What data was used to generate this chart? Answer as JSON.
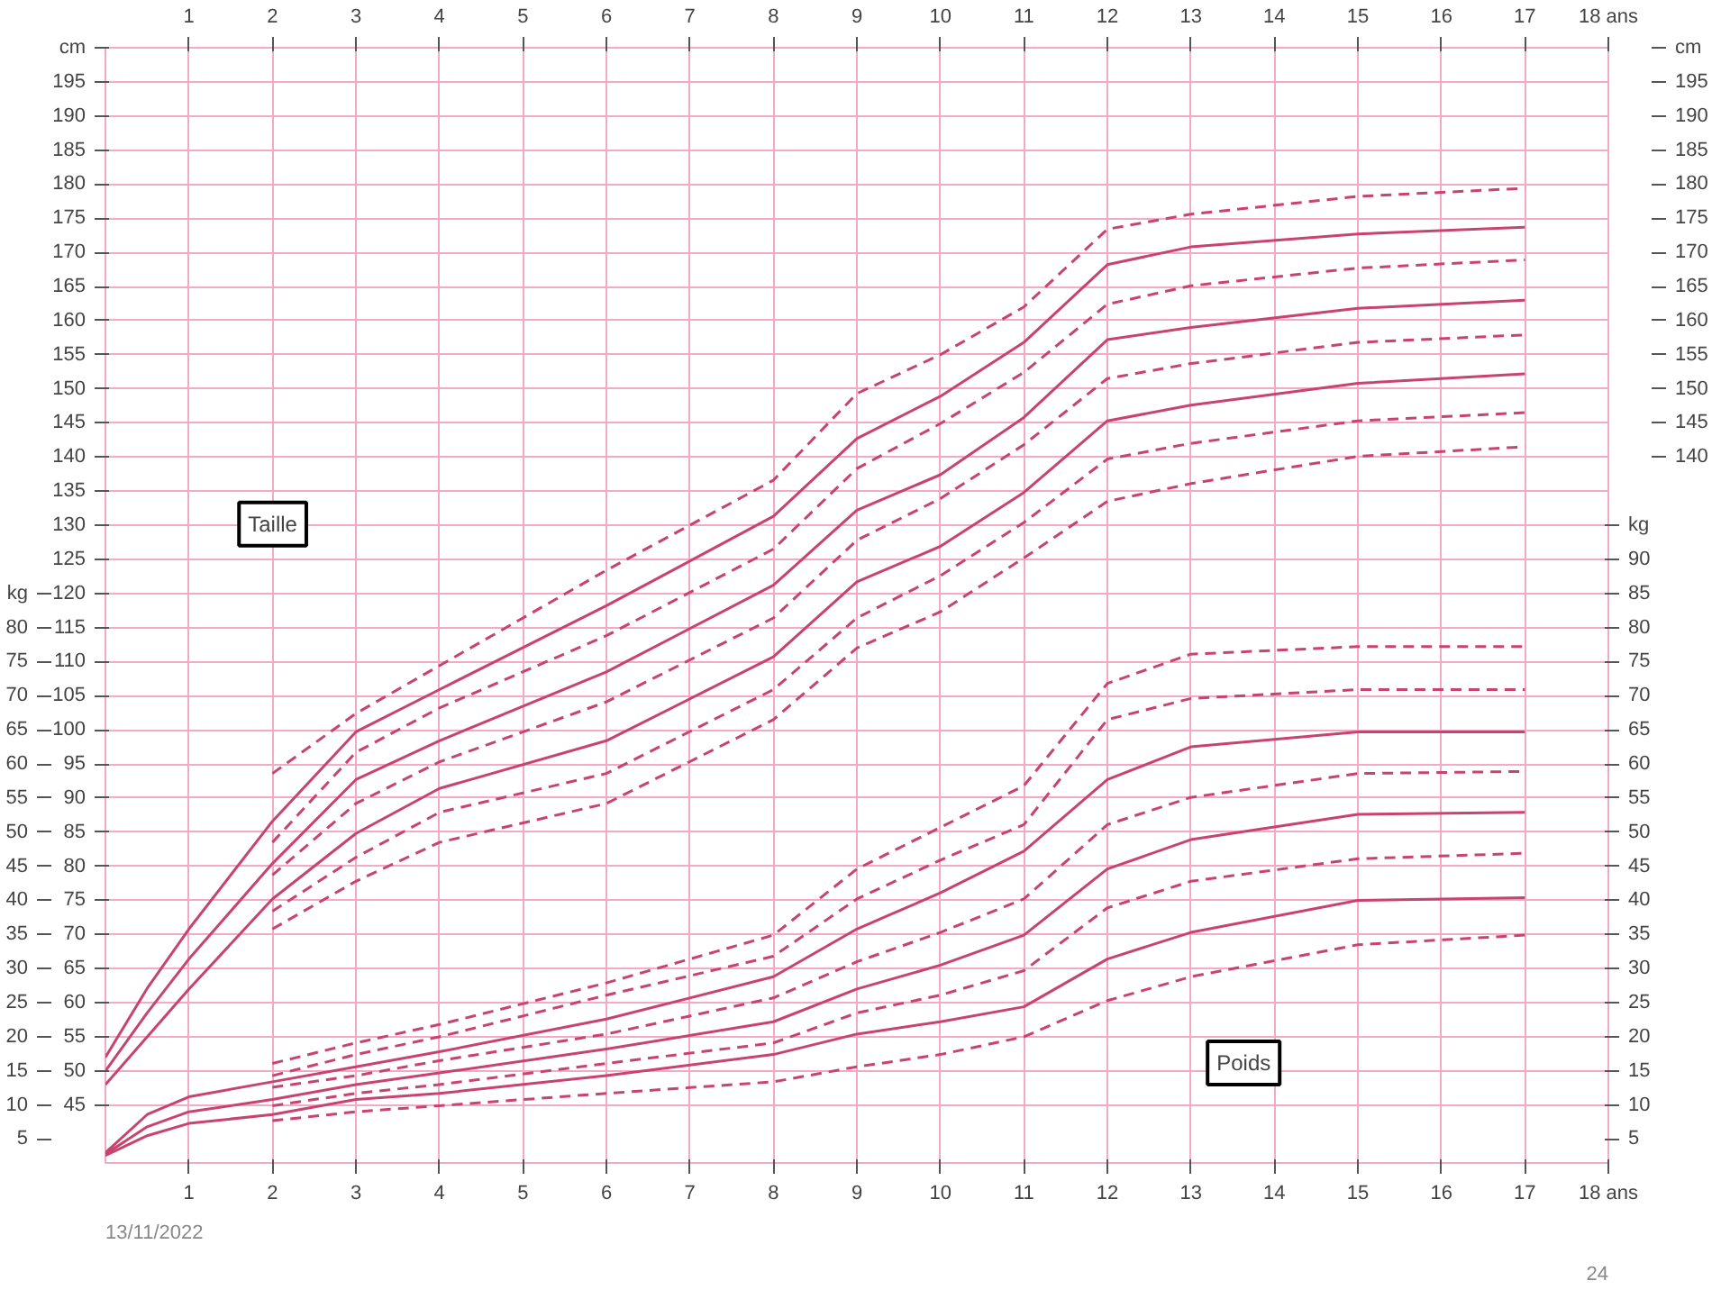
{
  "chart_data": {
    "type": "line",
    "xlim": [
      0,
      18
    ],
    "xticks": [
      1,
      2,
      3,
      4,
      5,
      6,
      7,
      8,
      9,
      10,
      11,
      12,
      13,
      14,
      15,
      16,
      17,
      {
        "value": 18,
        "label": "18 ans"
      }
    ],
    "x2lim": [
      0,
      18
    ],
    "x2ticks": [
      1,
      2,
      3,
      4,
      5,
      6,
      7,
      8,
      9,
      10,
      11,
      12,
      13,
      14,
      15,
      16,
      17,
      {
        "value": 18,
        "label": "18 ans"
      }
    ],
    "ylim": [
      36.5,
      200
    ],
    "yticks": [
      45,
      50,
      55,
      60,
      65,
      70,
      75,
      80,
      85,
      90,
      95,
      100,
      105,
      110,
      115,
      120,
      125,
      130,
      135,
      140,
      145,
      150,
      155,
      160,
      165,
      170,
      175,
      180,
      185,
      190,
      195,
      {
        "value": 200,
        "label": "cm"
      }
    ],
    "y2lim": [
      1.5,
      165
    ],
    "y2ticks": [
      5,
      10,
      15,
      20,
      25,
      30,
      35,
      40,
      45,
      50,
      55,
      60,
      65,
      70,
      75,
      80,
      {
        "value": 85,
        "label": "kg"
      }
    ],
    "y3lim": [
      1.5,
      165
    ],
    "y3ticks": [
      5,
      10,
      15,
      20,
      25,
      30,
      35,
      40,
      45,
      50,
      55,
      60,
      65,
      70,
      75,
      80,
      85,
      90,
      {
        "value": 95,
        "label": "kg"
      }
    ],
    "grid": true,
    "annotations": [
      "Taille",
      "Poids",
      "13/11/2022",
      "24",
      "140",
      "145",
      "150",
      "155",
      "160",
      "165",
      "170",
      "175",
      "180",
      "185",
      "190",
      "195",
      "cm"
    ],
    "series": [
      {
        "color": "#c8436e",
        "line_style": "solid",
        "x": [
          0,
          0.5,
          1,
          2,
          3,
          4,
          6,
          8,
          9,
          10,
          11,
          12,
          13,
          15,
          17
        ],
        "values": [
          52,
          62.1,
          70.8,
          86.6,
          99.7,
          105.9,
          118.2,
          131.3,
          142.7,
          148.9,
          156.8,
          168.2,
          170.8,
          172.7,
          173.7
        ]
      },
      {
        "color": "#c8436e",
        "line_style": "solid",
        "x": [
          0,
          0.5,
          1,
          2,
          3,
          4,
          6,
          8,
          9,
          10,
          11,
          12,
          13,
          15,
          17
        ],
        "values": [
          50,
          58.5,
          66.4,
          80.4,
          92.7,
          98.4,
          108.5,
          121.2,
          132.2,
          137.4,
          145.8,
          157.2,
          159.0,
          161.8,
          163.0
        ]
      },
      {
        "color": "#c8436e",
        "line_style": "solid",
        "x": [
          0,
          0.5,
          1,
          2,
          3,
          4,
          6,
          8,
          9,
          10,
          11,
          12,
          13,
          15,
          17
        ],
        "values": [
          48,
          55,
          62,
          75.2,
          84.8,
          91.4,
          98.4,
          110.7,
          121.7,
          126.9,
          134.8,
          145.3,
          147.6,
          150.8,
          152.2
        ]
      },
      {
        "color": "#c8436e",
        "line_style": "dashed",
        "x": [
          2,
          3,
          4,
          6,
          8,
          9,
          10,
          11,
          12,
          13,
          15,
          17
        ],
        "values": [
          93.6,
          102.4,
          109.4,
          123.4,
          136.6,
          149.3,
          155,
          162,
          173.4,
          175.6,
          178.2,
          179.4
        ]
      },
      {
        "color": "#c8436e",
        "line_style": "dashed",
        "x": [
          2,
          3,
          4,
          6,
          8,
          9,
          10,
          11,
          12,
          13,
          15,
          17
        ],
        "values": [
          83.5,
          96.7,
          103.2,
          113.8,
          126.5,
          138.3,
          144.9,
          152.4,
          162.4,
          165.1,
          167.7,
          168.9
        ]
      },
      {
        "color": "#c8436e",
        "line_style": "dashed",
        "x": [
          2,
          3,
          4,
          6,
          8,
          9,
          10,
          11,
          12,
          13,
          15,
          17
        ],
        "values": [
          78.7,
          89.2,
          95.3,
          104.1,
          116.4,
          127.8,
          133.9,
          141.8,
          151.5,
          153.7,
          156.8,
          157.9
        ]
      },
      {
        "color": "#c8436e",
        "line_style": "dashed",
        "x": [
          2,
          3,
          4,
          6,
          8,
          9,
          10,
          11,
          12,
          13,
          15,
          17
        ],
        "values": [
          73.4,
          81.3,
          87.9,
          93.6,
          105.9,
          116.4,
          122.6,
          130.4,
          139.7,
          142.0,
          145.3,
          146.5
        ]
      },
      {
        "color": "#c8436e",
        "line_style": "dashed",
        "x": [
          2,
          3,
          4,
          6,
          8,
          9,
          10,
          11,
          12,
          13,
          15,
          17
        ],
        "values": [
          70.8,
          77.8,
          83.5,
          89.2,
          101.5,
          112.0,
          117.3,
          125.2,
          133.5,
          136.1,
          140.1,
          141.5
        ]
      },
      {
        "color": "#c8436e",
        "line_style": "solid",
        "axis": "y2",
        "x": [
          0,
          0.5,
          1,
          2,
          3,
          4,
          6,
          8,
          9,
          10,
          11,
          12,
          13,
          15,
          17
        ],
        "values": [
          3.0,
          8.6,
          11.2,
          13.4,
          15.6,
          17.8,
          22.6,
          28.8,
          35.8,
          41.1,
          47.2,
          57.7,
          62.5,
          64.7,
          64.7
        ]
      },
      {
        "color": "#c8436e",
        "line_style": "solid",
        "axis": "y2",
        "x": [
          0,
          0.5,
          1,
          2,
          3,
          4,
          6,
          8,
          9,
          10,
          11,
          12,
          13,
          15,
          17
        ],
        "values": [
          2.8,
          6.8,
          9.0,
          10.8,
          13.0,
          14.7,
          18.2,
          22.2,
          27.0,
          30.5,
          34.9,
          44.6,
          48.9,
          52.6,
          52.9
        ]
      },
      {
        "color": "#c8436e",
        "line_style": "solid",
        "axis": "y2",
        "x": [
          0,
          0.5,
          1,
          2,
          3,
          4,
          6,
          8,
          9,
          10,
          11,
          12,
          13,
          15,
          17
        ],
        "values": [
          2.6,
          5.5,
          7.3,
          8.6,
          10.8,
          11.7,
          14.3,
          17.4,
          20.4,
          22.2,
          24.4,
          31.4,
          35.3,
          40.0,
          40.4
        ]
      },
      {
        "color": "#c8436e",
        "line_style": "dashed",
        "axis": "y2",
        "x": [
          2,
          3,
          4,
          6,
          8,
          9,
          10,
          11,
          12,
          13,
          15,
          17
        ],
        "values": [
          16.1,
          19.1,
          21.8,
          27.9,
          34.9,
          44.6,
          50.7,
          56.8,
          71.8,
          76.1,
          77.2,
          77.2
        ]
      },
      {
        "color": "#c8436e",
        "line_style": "dashed",
        "axis": "y2",
        "x": [
          2,
          3,
          4,
          6,
          8,
          9,
          10,
          11,
          12,
          13,
          15,
          17
        ],
        "values": [
          14.3,
          17.4,
          20.0,
          26.1,
          31.8,
          40.2,
          45.9,
          51.1,
          66.5,
          69.6,
          70.9,
          70.9
        ]
      },
      {
        "color": "#c8436e",
        "line_style": "dashed",
        "axis": "y2",
        "x": [
          2,
          3,
          4,
          6,
          8,
          9,
          10,
          11,
          12,
          13,
          15,
          17
        ],
        "values": [
          12.6,
          14.3,
          16.5,
          20.4,
          25.7,
          31.0,
          35.3,
          40.2,
          51.1,
          55.1,
          58.6,
          58.9
        ]
      },
      {
        "color": "#c8436e",
        "line_style": "dashed",
        "axis": "y2",
        "x": [
          2,
          3,
          4,
          6,
          8,
          9,
          10,
          11,
          12,
          13,
          15,
          17
        ],
        "values": [
          9.9,
          11.7,
          13.0,
          16.1,
          19.1,
          23.5,
          26.1,
          29.7,
          38.9,
          42.8,
          46.1,
          46.9
        ]
      },
      {
        "color": "#c8436e",
        "line_style": "dashed",
        "axis": "y2",
        "x": [
          2,
          3,
          4,
          6,
          8,
          9,
          10,
          11,
          12,
          13,
          15,
          17
        ],
        "values": [
          7.7,
          9.0,
          9.9,
          11.7,
          13.4,
          15.6,
          17.4,
          20.0,
          25.3,
          28.8,
          33.5,
          34.9
        ]
      }
    ]
  }
}
